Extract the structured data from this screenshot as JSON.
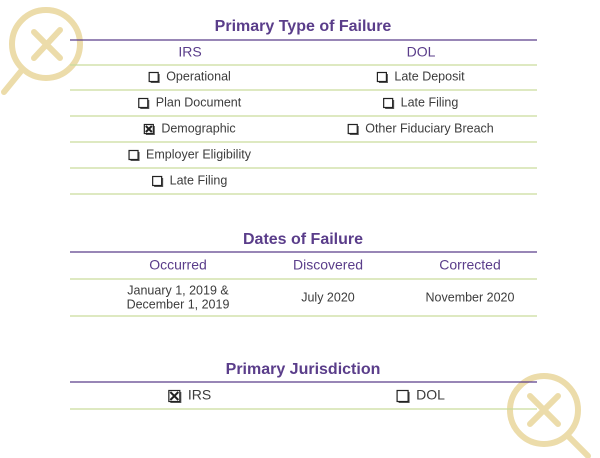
{
  "failure_type": {
    "title": "Primary Type of Failure",
    "columns": [
      {
        "heading": "IRS",
        "items": [
          {
            "label": "Operational",
            "checked": false
          },
          {
            "label": "Plan Document",
            "checked": false
          },
          {
            "label": "Demographic",
            "checked": true
          },
          {
            "label": "Employer Eligibility",
            "checked": false
          },
          {
            "label": "Late Filing",
            "checked": false
          }
        ]
      },
      {
        "heading": "DOL",
        "items": [
          {
            "label": "Late Deposit",
            "checked": false
          },
          {
            "label": "Late Filing",
            "checked": false
          },
          {
            "label": "Other Fiduciary Breach",
            "checked": false
          }
        ]
      }
    ]
  },
  "dates": {
    "title": "Dates of Failure",
    "headers": [
      "Occurred",
      "Discovered",
      "Corrected"
    ],
    "values": [
      [
        "January 1, 2019 &",
        "December 1, 2019"
      ],
      [
        "July 2020"
      ],
      [
        "November 2020"
      ]
    ]
  },
  "jurisdiction": {
    "title": "Primary Jurisdiction",
    "options": [
      {
        "label": "IRS",
        "checked": true
      },
      {
        "label": "DOL",
        "checked": false
      }
    ]
  }
}
